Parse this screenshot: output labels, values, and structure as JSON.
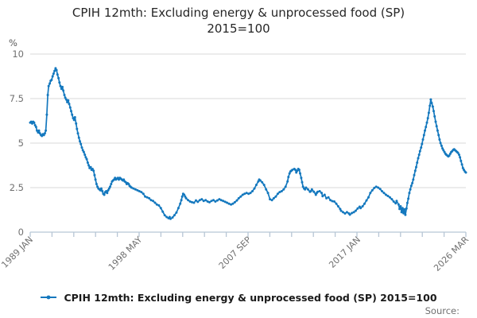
{
  "title_line1": "CPIH 12mth: Excluding energy & unprocessed food (SP)",
  "title_line2": "2015=100",
  "y_axis_unit": "%",
  "legend_label": "CPIH 12mth: Excluding energy & unprocessed food (SP) 2015=100",
  "source_label": "Source:",
  "colors": {
    "line": "#1478be",
    "grid": "#d9d9d9",
    "axis": "#b7c6d5",
    "tick_text": "#707070"
  },
  "chart_data": {
    "type": "line",
    "title": "CPIH 12mth: Excluding energy & unprocessed food (SP) 2015=100",
    "xlabel": "",
    "ylabel": "%",
    "ylim": [
      0,
      10
    ],
    "y_ticks": [
      0,
      2.5,
      5,
      7.5,
      10
    ],
    "x_range": [
      1989.0,
      2026.25
    ],
    "x_tick_labels": [
      {
        "t": 1989.0,
        "label": "1989 JAN"
      },
      {
        "t": 1998.3333,
        "label": "1998 MAY"
      },
      {
        "t": 2007.6667,
        "label": "2007 SEP"
      },
      {
        "t": 2017.0,
        "label": "2017 JAN"
      },
      {
        "t": 2026.25,
        "label": "2026 MAR"
      }
    ],
    "minor_ticks_between_labels": 4,
    "grid": "horizontal",
    "legend_position": "bottom",
    "series_name": "CPIH 12mth: Excluding energy & unprocessed food (SP) 2015=100",
    "points": [
      [
        1989.0,
        6.15
      ],
      [
        1989.08,
        6.2
      ],
      [
        1989.17,
        6.1
      ],
      [
        1989.25,
        6.2
      ],
      [
        1989.33,
        6.15
      ],
      [
        1989.42,
        6.0
      ],
      [
        1989.5,
        5.9
      ],
      [
        1989.58,
        5.7
      ],
      [
        1989.67,
        5.6
      ],
      [
        1989.75,
        5.7
      ],
      [
        1989.83,
        5.55
      ],
      [
        1989.92,
        5.45
      ],
      [
        1990.0,
        5.4
      ],
      [
        1990.08,
        5.5
      ],
      [
        1990.17,
        5.45
      ],
      [
        1990.25,
        5.55
      ],
      [
        1990.33,
        5.7
      ],
      [
        1990.42,
        6.6
      ],
      [
        1990.5,
        7.7
      ],
      [
        1990.58,
        8.2
      ],
      [
        1990.67,
        8.35
      ],
      [
        1990.75,
        8.5
      ],
      [
        1990.83,
        8.55
      ],
      [
        1990.92,
        8.75
      ],
      [
        1991.0,
        8.9
      ],
      [
        1991.08,
        9.05
      ],
      [
        1991.17,
        9.2
      ],
      [
        1991.25,
        9.1
      ],
      [
        1991.33,
        8.85
      ],
      [
        1991.42,
        8.65
      ],
      [
        1991.5,
        8.4
      ],
      [
        1991.58,
        8.2
      ],
      [
        1991.67,
        8.05
      ],
      [
        1991.75,
        8.15
      ],
      [
        1991.83,
        7.95
      ],
      [
        1991.92,
        7.7
      ],
      [
        1992.0,
        7.55
      ],
      [
        1992.08,
        7.45
      ],
      [
        1992.17,
        7.3
      ],
      [
        1992.25,
        7.4
      ],
      [
        1992.33,
        7.2
      ],
      [
        1992.42,
        7.0
      ],
      [
        1992.5,
        6.8
      ],
      [
        1992.58,
        6.6
      ],
      [
        1992.67,
        6.4
      ],
      [
        1992.75,
        6.3
      ],
      [
        1992.83,
        6.45
      ],
      [
        1992.92,
        6.1
      ],
      [
        1993.0,
        5.8
      ],
      [
        1993.08,
        5.55
      ],
      [
        1993.17,
        5.3
      ],
      [
        1993.25,
        5.1
      ],
      [
        1993.33,
        4.95
      ],
      [
        1993.42,
        4.75
      ],
      [
        1993.5,
        4.6
      ],
      [
        1993.58,
        4.5
      ],
      [
        1993.67,
        4.35
      ],
      [
        1993.75,
        4.2
      ],
      [
        1993.83,
        4.1
      ],
      [
        1993.92,
        3.9
      ],
      [
        1994.0,
        3.75
      ],
      [
        1994.08,
        3.6
      ],
      [
        1994.17,
        3.65
      ],
      [
        1994.25,
        3.5
      ],
      [
        1994.33,
        3.55
      ],
      [
        1994.42,
        3.45
      ],
      [
        1994.5,
        3.2
      ],
      [
        1994.58,
        2.95
      ],
      [
        1994.67,
        2.7
      ],
      [
        1994.75,
        2.55
      ],
      [
        1994.83,
        2.45
      ],
      [
        1994.92,
        2.4
      ],
      [
        1995.0,
        2.35
      ],
      [
        1995.08,
        2.45
      ],
      [
        1995.17,
        2.3
      ],
      [
        1995.25,
        2.15
      ],
      [
        1995.33,
        2.1
      ],
      [
        1995.42,
        2.25
      ],
      [
        1995.5,
        2.3
      ],
      [
        1995.58,
        2.2
      ],
      [
        1995.67,
        2.35
      ],
      [
        1995.75,
        2.45
      ],
      [
        1995.83,
        2.55
      ],
      [
        1995.92,
        2.7
      ],
      [
        1996.0,
        2.85
      ],
      [
        1996.08,
        2.9
      ],
      [
        1996.17,
        2.95
      ],
      [
        1996.25,
        3.05
      ],
      [
        1996.33,
        2.95
      ],
      [
        1996.42,
        3.0
      ],
      [
        1996.5,
        3.05
      ],
      [
        1996.58,
        2.95
      ],
      [
        1996.67,
        3.05
      ],
      [
        1996.75,
        3.0
      ],
      [
        1996.83,
        2.95
      ],
      [
        1996.92,
        2.9
      ],
      [
        1997.0,
        2.95
      ],
      [
        1997.08,
        2.85
      ],
      [
        1997.17,
        2.8
      ],
      [
        1997.25,
        2.7
      ],
      [
        1997.33,
        2.75
      ],
      [
        1997.42,
        2.7
      ],
      [
        1997.5,
        2.6
      ],
      [
        1997.58,
        2.55
      ],
      [
        1997.67,
        2.5
      ],
      [
        1997.83,
        2.45
      ],
      [
        1998.0,
        2.4
      ],
      [
        1998.17,
        2.35
      ],
      [
        1998.33,
        2.3
      ],
      [
        1998.5,
        2.25
      ],
      [
        1998.67,
        2.15
      ],
      [
        1998.83,
        2.0
      ],
      [
        1999.0,
        1.95
      ],
      [
        1999.17,
        1.9
      ],
      [
        1999.33,
        1.8
      ],
      [
        1999.5,
        1.75
      ],
      [
        1999.67,
        1.65
      ],
      [
        1999.83,
        1.55
      ],
      [
        2000.0,
        1.5
      ],
      [
        2000.17,
        1.35
      ],
      [
        2000.33,
        1.15
      ],
      [
        2000.5,
        0.95
      ],
      [
        2000.67,
        0.85
      ],
      [
        2000.83,
        0.78
      ],
      [
        2000.92,
        0.85
      ],
      [
        2001.0,
        0.75
      ],
      [
        2001.17,
        0.82
      ],
      [
        2001.33,
        0.95
      ],
      [
        2001.5,
        1.1
      ],
      [
        2001.67,
        1.35
      ],
      [
        2001.83,
        1.6
      ],
      [
        2001.92,
        1.8
      ],
      [
        2002.0,
        2.0
      ],
      [
        2002.08,
        2.15
      ],
      [
        2002.17,
        2.1
      ],
      [
        2002.25,
        2.0
      ],
      [
        2002.33,
        1.9
      ],
      [
        2002.5,
        1.8
      ],
      [
        2002.67,
        1.72
      ],
      [
        2002.83,
        1.68
      ],
      [
        2003.0,
        1.65
      ],
      [
        2003.17,
        1.78
      ],
      [
        2003.33,
        1.7
      ],
      [
        2003.5,
        1.8
      ],
      [
        2003.67,
        1.85
      ],
      [
        2003.83,
        1.75
      ],
      [
        2004.0,
        1.8
      ],
      [
        2004.17,
        1.72
      ],
      [
        2004.33,
        1.68
      ],
      [
        2004.5,
        1.75
      ],
      [
        2004.67,
        1.8
      ],
      [
        2004.83,
        1.72
      ],
      [
        2005.0,
        1.78
      ],
      [
        2005.17,
        1.85
      ],
      [
        2005.33,
        1.8
      ],
      [
        2005.5,
        1.75
      ],
      [
        2005.67,
        1.7
      ],
      [
        2005.83,
        1.65
      ],
      [
        2006.0,
        1.6
      ],
      [
        2006.17,
        1.55
      ],
      [
        2006.33,
        1.6
      ],
      [
        2006.5,
        1.68
      ],
      [
        2006.67,
        1.78
      ],
      [
        2006.83,
        1.9
      ],
      [
        2007.0,
        2.0
      ],
      [
        2007.17,
        2.1
      ],
      [
        2007.33,
        2.15
      ],
      [
        2007.5,
        2.2
      ],
      [
        2007.67,
        2.15
      ],
      [
        2007.83,
        2.2
      ],
      [
        2008.0,
        2.3
      ],
      [
        2008.17,
        2.45
      ],
      [
        2008.33,
        2.65
      ],
      [
        2008.5,
        2.85
      ],
      [
        2008.58,
        2.95
      ],
      [
        2008.67,
        2.9
      ],
      [
        2008.83,
        2.8
      ],
      [
        2009.0,
        2.65
      ],
      [
        2009.17,
        2.4
      ],
      [
        2009.33,
        2.2
      ],
      [
        2009.5,
        1.85
      ],
      [
        2009.67,
        1.8
      ],
      [
        2009.83,
        1.9
      ],
      [
        2010.0,
        2.0
      ],
      [
        2010.17,
        2.15
      ],
      [
        2010.33,
        2.25
      ],
      [
        2010.5,
        2.3
      ],
      [
        2010.67,
        2.4
      ],
      [
        2010.83,
        2.55
      ],
      [
        2011.0,
        2.85
      ],
      [
        2011.08,
        3.1
      ],
      [
        2011.17,
        3.3
      ],
      [
        2011.25,
        3.4
      ],
      [
        2011.33,
        3.45
      ],
      [
        2011.42,
        3.5
      ],
      [
        2011.58,
        3.55
      ],
      [
        2011.67,
        3.5
      ],
      [
        2011.75,
        3.35
      ],
      [
        2011.83,
        3.45
      ],
      [
        2011.92,
        3.55
      ],
      [
        2012.0,
        3.5
      ],
      [
        2012.08,
        3.3
      ],
      [
        2012.17,
        3.05
      ],
      [
        2012.25,
        2.8
      ],
      [
        2012.33,
        2.55
      ],
      [
        2012.42,
        2.45
      ],
      [
        2012.5,
        2.4
      ],
      [
        2012.58,
        2.5
      ],
      [
        2012.75,
        2.4
      ],
      [
        2012.92,
        2.27
      ],
      [
        2013.0,
        2.3
      ],
      [
        2013.08,
        2.4
      ],
      [
        2013.25,
        2.27
      ],
      [
        2013.42,
        2.1
      ],
      [
        2013.5,
        2.2
      ],
      [
        2013.58,
        2.27
      ],
      [
        2013.75,
        2.3
      ],
      [
        2013.92,
        2.2
      ],
      [
        2014.0,
        2.02
      ],
      [
        2014.17,
        2.1
      ],
      [
        2014.33,
        1.9
      ],
      [
        2014.5,
        1.95
      ],
      [
        2014.67,
        1.8
      ],
      [
        2014.83,
        1.74
      ],
      [
        2015.0,
        1.72
      ],
      [
        2015.17,
        1.6
      ],
      [
        2015.33,
        1.45
      ],
      [
        2015.5,
        1.3
      ],
      [
        2015.58,
        1.2
      ],
      [
        2015.75,
        1.12
      ],
      [
        2015.92,
        1.05
      ],
      [
        2016.08,
        1.12
      ],
      [
        2016.25,
        1.05
      ],
      [
        2016.33,
        0.98
      ],
      [
        2016.5,
        1.07
      ],
      [
        2016.67,
        1.12
      ],
      [
        2016.83,
        1.2
      ],
      [
        2017.0,
        1.33
      ],
      [
        2017.17,
        1.43
      ],
      [
        2017.25,
        1.35
      ],
      [
        2017.42,
        1.45
      ],
      [
        2017.58,
        1.6
      ],
      [
        2017.75,
        1.78
      ],
      [
        2017.92,
        1.95
      ],
      [
        2018.08,
        2.2
      ],
      [
        2018.25,
        2.35
      ],
      [
        2018.42,
        2.48
      ],
      [
        2018.58,
        2.55
      ],
      [
        2018.75,
        2.5
      ],
      [
        2018.92,
        2.42
      ],
      [
        2019.08,
        2.3
      ],
      [
        2019.25,
        2.2
      ],
      [
        2019.42,
        2.1
      ],
      [
        2019.58,
        2.03
      ],
      [
        2019.75,
        1.95
      ],
      [
        2019.92,
        1.85
      ],
      [
        2020.08,
        1.72
      ],
      [
        2020.25,
        1.62
      ],
      [
        2020.33,
        1.75
      ],
      [
        2020.5,
        1.55
      ],
      [
        2020.58,
        1.3
      ],
      [
        2020.67,
        1.45
      ],
      [
        2020.75,
        1.12
      ],
      [
        2020.83,
        1.35
      ],
      [
        2020.92,
        1.06
      ],
      [
        2021.0,
        1.28
      ],
      [
        2021.08,
        0.97
      ],
      [
        2021.17,
        1.33
      ],
      [
        2021.25,
        1.64
      ],
      [
        2021.33,
        1.88
      ],
      [
        2021.42,
        2.2
      ],
      [
        2021.5,
        2.4
      ],
      [
        2021.58,
        2.6
      ],
      [
        2021.67,
        2.75
      ],
      [
        2021.75,
        2.95
      ],
      [
        2021.83,
        3.2
      ],
      [
        2021.92,
        3.45
      ],
      [
        2022.0,
        3.65
      ],
      [
        2022.08,
        3.9
      ],
      [
        2022.17,
        4.15
      ],
      [
        2022.25,
        4.35
      ],
      [
        2022.33,
        4.55
      ],
      [
        2022.42,
        4.75
      ],
      [
        2022.5,
        4.95
      ],
      [
        2022.58,
        5.2
      ],
      [
        2022.67,
        5.45
      ],
      [
        2022.75,
        5.7
      ],
      [
        2022.83,
        5.9
      ],
      [
        2022.92,
        6.15
      ],
      [
        2023.0,
        6.4
      ],
      [
        2023.08,
        6.7
      ],
      [
        2023.17,
        7.1
      ],
      [
        2023.25,
        7.45
      ],
      [
        2023.33,
        7.25
      ],
      [
        2023.42,
        7.05
      ],
      [
        2023.5,
        6.8
      ],
      [
        2023.58,
        6.5
      ],
      [
        2023.67,
        6.2
      ],
      [
        2023.75,
        5.95
      ],
      [
        2023.83,
        5.7
      ],
      [
        2023.92,
        5.45
      ],
      [
        2024.0,
        5.2
      ],
      [
        2024.08,
        5.0
      ],
      [
        2024.17,
        4.85
      ],
      [
        2024.25,
        4.7
      ],
      [
        2024.33,
        4.6
      ],
      [
        2024.42,
        4.5
      ],
      [
        2024.5,
        4.4
      ],
      [
        2024.58,
        4.35
      ],
      [
        2024.67,
        4.3
      ],
      [
        2024.75,
        4.25
      ],
      [
        2024.83,
        4.3
      ],
      [
        2024.92,
        4.4
      ],
      [
        2025.0,
        4.5
      ],
      [
        2025.08,
        4.55
      ],
      [
        2025.17,
        4.62
      ],
      [
        2025.25,
        4.65
      ],
      [
        2025.33,
        4.6
      ],
      [
        2025.42,
        4.55
      ],
      [
        2025.5,
        4.5
      ],
      [
        2025.58,
        4.45
      ],
      [
        2025.67,
        4.35
      ],
      [
        2025.75,
        4.2
      ],
      [
        2025.83,
        4.0
      ],
      [
        2025.92,
        3.8
      ],
      [
        2026.0,
        3.6
      ],
      [
        2026.08,
        3.5
      ],
      [
        2026.17,
        3.4
      ],
      [
        2026.25,
        3.35
      ]
    ]
  }
}
